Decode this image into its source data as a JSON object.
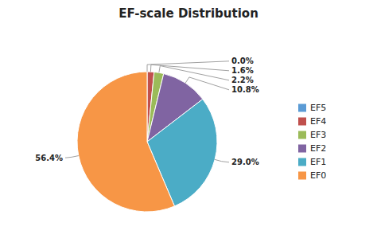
{
  "chart_data": {
    "type": "pie",
    "title": "EF-scale Distribution",
    "categories": [
      "EF5",
      "EF4",
      "EF3",
      "EF2",
      "EF1",
      "EF0"
    ],
    "values": [
      0.0,
      1.6,
      2.2,
      10.8,
      29.0,
      56.4
    ],
    "value_labels": [
      "0.0%",
      "1.6%",
      "2.2%",
      "10.8%",
      "29.0%",
      "56.4%"
    ],
    "colors": [
      "#5b9bd5",
      "#c0504d",
      "#9bbb59",
      "#8064a2",
      "#4bacc6",
      "#f79646"
    ],
    "data_labels": true,
    "legend": "right"
  }
}
